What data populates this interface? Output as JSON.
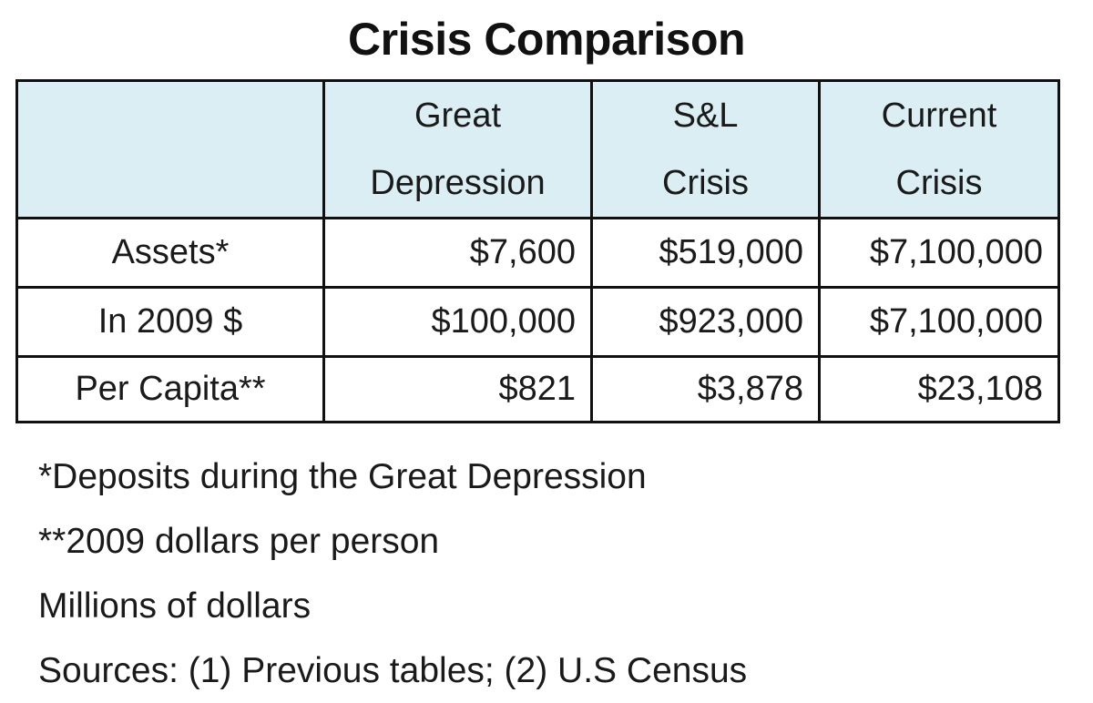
{
  "title": "Crisis Comparison",
  "table": {
    "headers": [
      {
        "line1": "",
        "line2": ""
      },
      {
        "line1": "Great",
        "line2": "Depression"
      },
      {
        "line1": "S&L",
        "line2": "Crisis"
      },
      {
        "line1": "Current",
        "line2": "Crisis"
      }
    ],
    "rows": [
      {
        "label": "Assets*",
        "values": [
          "$7,600",
          "$519,000",
          "$7,100,000"
        ]
      },
      {
        "label": "In 2009 $",
        "values": [
          "$100,000",
          "$923,000",
          "$7,100,000"
        ]
      },
      {
        "label": "Per Capita**",
        "values": [
          "$821",
          "$3,878",
          "$23,108"
        ]
      }
    ]
  },
  "notes": [
    "*Deposits during the Great Depression",
    "**2009 dollars per person",
    "Millions of dollars",
    "Sources: (1) Previous tables; (2) U.S Census"
  ],
  "colors": {
    "header_background": "#daeef3",
    "border": "#111111",
    "text": "#1a1a1a"
  }
}
